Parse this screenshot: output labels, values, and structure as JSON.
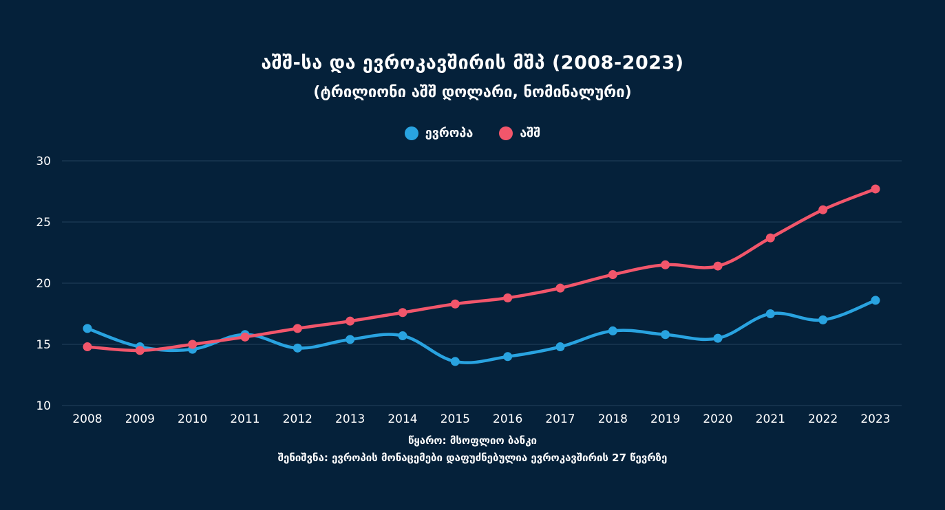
{
  "colors": {
    "background": "#05213a",
    "europe": "#29a3e0",
    "usa": "#f2566b",
    "grid": "#23415c"
  },
  "chart_data": {
    "type": "line",
    "title": "აშშ-სა და ევროკავშირის მშპ (2008-2023)",
    "subtitle": "(ტრილიონი აშშ დოლარი, ნომინალური)",
    "xlabel": "",
    "ylabel": "",
    "ylim": [
      10,
      30
    ],
    "yticks": [
      "10",
      "15",
      "20",
      "25",
      "30"
    ],
    "grid": true,
    "legend_position": "top-center",
    "categories": [
      "2008",
      "2009",
      "2010",
      "2011",
      "2012",
      "2013",
      "2014",
      "2015",
      "2016",
      "2017",
      "2018",
      "2019",
      "2020",
      "2021",
      "2022",
      "2023"
    ],
    "series": [
      {
        "name": "ევროპა",
        "color_key": "europe",
        "values": [
          16.3,
          14.8,
          14.6,
          15.8,
          14.7,
          15.4,
          15.7,
          13.6,
          14.0,
          14.8,
          16.1,
          15.8,
          15.5,
          17.5,
          17.0,
          18.6
        ]
      },
      {
        "name": "აშშ",
        "color_key": "usa",
        "values": [
          14.8,
          14.5,
          15.0,
          15.6,
          16.3,
          16.9,
          17.6,
          18.3,
          18.8,
          19.6,
          20.7,
          21.5,
          21.4,
          23.7,
          26.0,
          27.7
        ]
      }
    ]
  },
  "footer": {
    "source": "წყარო: მსოფლიო ბანკი",
    "note": "შენიშვნა: ევროპის მონაცემები დაფუძნებულია ევროკავშირის 27 წევრზე"
  }
}
